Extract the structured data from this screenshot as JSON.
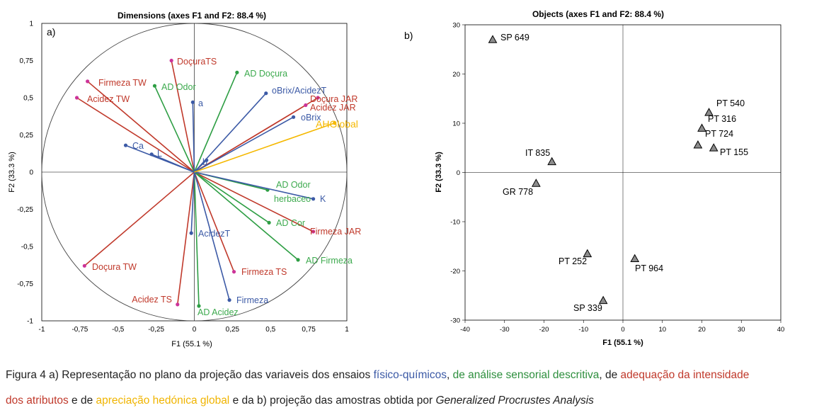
{
  "colors": {
    "physico_chemical": "#3c5aa6",
    "sensory_descriptive": "#2e9e44",
    "jar": "#c0392b",
    "hedonic": "#f5b800",
    "point_pink": "#cc3399",
    "axis": "#000000",
    "marker_fill": "#8c8c8c"
  },
  "chart_data": [
    {
      "type": "scatter",
      "subtype": "correlation-circle-biplot",
      "panel_label": "a)",
      "title": "Dimensions (axes F1 and F2: 88.4 %)",
      "xlabel": "F1 (55.1 %)",
      "ylabel": "F2 (33.3 %)",
      "xlim": [
        -1,
        1
      ],
      "ylim": [
        -1,
        1
      ],
      "xticks": [
        "-1",
        "-0,75",
        "-0,5",
        "-0,25",
        "0",
        "0,25",
        "0,5",
        "0,75",
        "1"
      ],
      "yticks": [
        "-1",
        "-0,75",
        "-0,5",
        "-0,25",
        "0",
        "0,25",
        "0,5",
        "0,75",
        "1"
      ],
      "grid": false,
      "circle_radius": 1,
      "vectors": [
        {
          "label": "DoçuraTS",
          "x": -0.15,
          "y": 0.75,
          "group": "jar",
          "dot": "pink"
        },
        {
          "label": "Firmeza TW",
          "x": -0.7,
          "y": 0.61,
          "group": "jar",
          "dot": "pink"
        },
        {
          "label": "Acidez TW",
          "x": -0.77,
          "y": 0.5,
          "group": "jar",
          "dot": "pink"
        },
        {
          "label": "Doçura TW",
          "x": -0.72,
          "y": -0.63,
          "group": "jar",
          "dot": "pink"
        },
        {
          "label": "Acidez TS",
          "x": -0.11,
          "y": -0.89,
          "group": "jar",
          "dot": "pink"
        },
        {
          "label": "Firmeza TS",
          "x": 0.26,
          "y": -0.67,
          "group": "jar",
          "dot": "pink"
        },
        {
          "label": "Firmeza JAR",
          "x": 0.78,
          "y": -0.4,
          "group": "jar",
          "dot": "pink"
        },
        {
          "label": "Doçura JAR",
          "x": 0.81,
          "y": 0.5,
          "group": "jar",
          "dot": "pink"
        },
        {
          "label": "Acidez JAR",
          "x": 0.73,
          "y": 0.45,
          "group": "jar",
          "dot": "pink"
        },
        {
          "label": "AD Doçura",
          "x": 0.28,
          "y": 0.67,
          "group": "sensory",
          "dot": "green"
        },
        {
          "label": "AD Odor",
          "x": -0.26,
          "y": 0.58,
          "group": "sensory",
          "dot": "green"
        },
        {
          "label": "AD Odor herbaceo",
          "x": 0.48,
          "y": -0.12,
          "group": "sensory",
          "dot": "green"
        },
        {
          "label": "AD Cor",
          "x": 0.49,
          "y": -0.34,
          "group": "sensory",
          "dot": "green"
        },
        {
          "label": "AD Firmeza",
          "x": 0.68,
          "y": -0.59,
          "group": "sensory",
          "dot": "green"
        },
        {
          "label": "AD Acidez",
          "x": 0.03,
          "y": -0.9,
          "group": "sensory",
          "dot": "green"
        },
        {
          "label": "oBrix/AcidezT",
          "x": 0.47,
          "y": 0.53,
          "group": "physico_chemical",
          "dot": "blue"
        },
        {
          "label": "oBrix",
          "x": 0.65,
          "y": 0.37,
          "group": "physico_chemical",
          "dot": "blue"
        },
        {
          "label": "a",
          "x": -0.01,
          "y": 0.47,
          "group": "physico_chemical",
          "dot": "blue"
        },
        {
          "label": "Ca",
          "x": -0.45,
          "y": 0.18,
          "group": "physico_chemical",
          "dot": "blue"
        },
        {
          "label": "L",
          "x": -0.28,
          "y": 0.12,
          "group": "physico_chemical",
          "dot": "blue"
        },
        {
          "label": "b",
          "x": 0.08,
          "y": 0.08,
          "group": "physico_chemical",
          "dot": "blue"
        },
        {
          "label": "K",
          "x": 0.78,
          "y": -0.18,
          "group": "physico_chemical",
          "dot": "blue"
        },
        {
          "label": "AcidezT",
          "x": -0.02,
          "y": -0.41,
          "group": "physico_chemical",
          "dot": "blue"
        },
        {
          "label": "Firmeza",
          "x": 0.23,
          "y": -0.86,
          "group": "physico_chemical",
          "dot": "blue"
        },
        {
          "label": "AHGlobal",
          "x": 0.92,
          "y": 0.33,
          "group": "hedonic",
          "dot": "yellow"
        }
      ]
    },
    {
      "type": "scatter",
      "panel_label": "b)",
      "title": "Objects (axes F1 and F2: 88.4 %)",
      "xlabel": "F1 (55.1 %)",
      "ylabel": "F2 (33.3 %)",
      "xlim": [
        -40,
        40
      ],
      "ylim": [
        -30,
        30
      ],
      "xticks": [
        "-40",
        "-30",
        "-20",
        "-10",
        "0",
        "10",
        "20",
        "30",
        "40"
      ],
      "yticks": [
        "-30",
        "-20",
        "-10",
        "0",
        "10",
        "20",
        "30"
      ],
      "grid": false,
      "marker": "triangle",
      "points": [
        {
          "label": "SP 649",
          "x": -33,
          "y": 27
        },
        {
          "label": "IT 835",
          "x": -18,
          "y": 2.2
        },
        {
          "label": "GR 778",
          "x": -22,
          "y": -2.2
        },
        {
          "label": "PT 540",
          "x": 21.8,
          "y": 12.2
        },
        {
          "label": "PT 316",
          "x": 20,
          "y": 9
        },
        {
          "label": "PT 724",
          "x": 19,
          "y": 5.6
        },
        {
          "label": "PT 155",
          "x": 23,
          "y": 5
        },
        {
          "label": "PT 252",
          "x": -9,
          "y": -16.5
        },
        {
          "label": "PT 964",
          "x": 3,
          "y": -17.5
        },
        {
          "label": "SP 339",
          "x": -5,
          "y": -26
        }
      ]
    }
  ],
  "caption": {
    "line1": {
      "p1": "Figura 4 a) Representação no plano da projeção das variaveis dos ensaios ",
      "p2": "físico-químicos",
      "p3": ", ",
      "p4": "de análise sensorial descritiva",
      "p5": ", de ",
      "p6": "adequação da intensidade"
    },
    "line2": {
      "p1": "dos atributos",
      "p2": " e de ",
      "p3": "apreciação hedónica global",
      "p4": "   e da b) projeção das amostras obtida por ",
      "p5": "Generalized Procrustes Analysis"
    }
  }
}
